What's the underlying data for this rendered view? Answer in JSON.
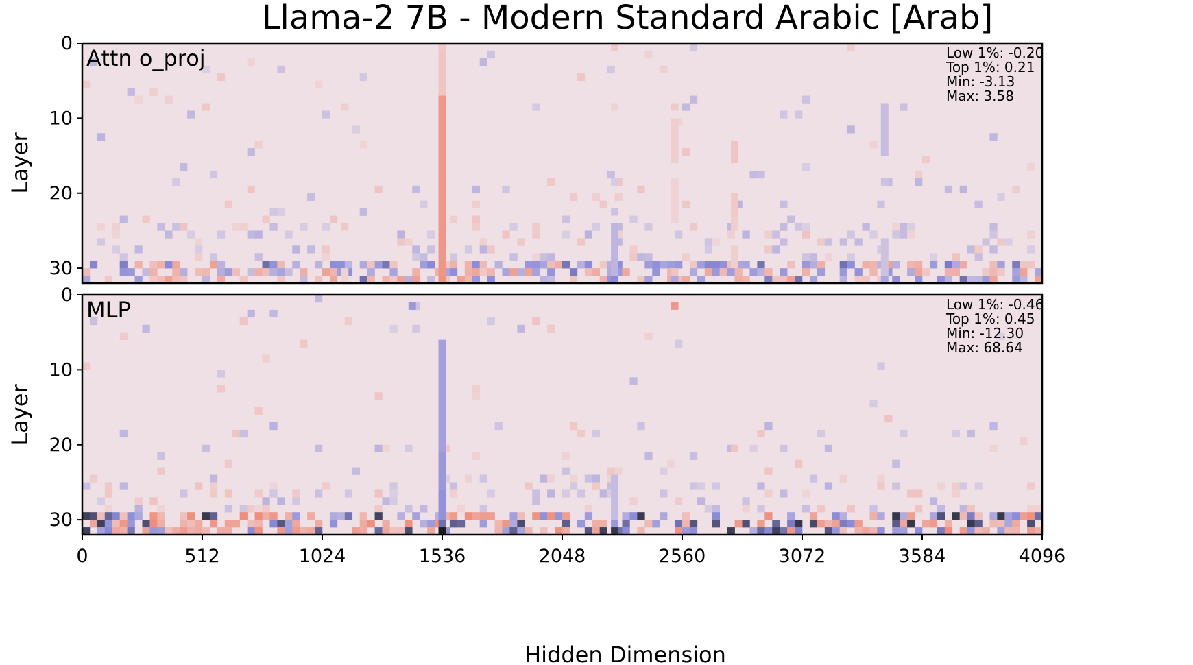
{
  "chart_data": {
    "type": "heatmap",
    "title": "Llama-2 7B - Modern Standard Arabic [Arab]",
    "xlabel": "Hidden Dimension",
    "ylabel": "Layer",
    "xlim": [
      0,
      4096
    ],
    "ylim": [
      0,
      32
    ],
    "xticks": [
      "0",
      "512",
      "1024",
      "1536",
      "2048",
      "2560",
      "3072",
      "3584",
      "4096"
    ],
    "yticks": [
      "0",
      "10",
      "20",
      "30"
    ],
    "colormap": {
      "negative": "#8a8ad8",
      "neutral": "#efe0e5",
      "positive": "#ee8470",
      "extreme": "#1c1c1c"
    },
    "panels": [
      {
        "name": "Attn o_proj",
        "stats": [
          "Low 1%: -0.20",
          "Top 1%: 0.21",
          "Min: -3.13",
          "Max: 3.58"
        ],
        "cells": [
          {
            "x": 1536,
            "layers": [
              [
                1,
                7,
                0.3
              ],
              [
                7,
                31,
                0.8
              ],
              [
                31,
                32,
                0.85
              ],
              [
                0,
                1,
                0.25
              ]
            ]
          },
          {
            "x": 2272,
            "layers": [
              [
                0,
                1,
                0.25
              ],
              [
                8,
                9,
                0.15
              ],
              [
                18,
                19,
                -0.15
              ],
              [
                22,
                23,
                -0.2
              ],
              [
                24,
                31,
                -0.3
              ],
              [
                31,
                32,
                -0.6
              ]
            ]
          },
          {
            "x": 2528,
            "layers": [
              [
                8,
                9,
                0.25
              ],
              [
                10,
                16,
                0.2
              ],
              [
                18,
                24,
                0.15
              ],
              [
                30,
                31,
                0.3
              ],
              [
                31,
                32,
                -0.4
              ]
            ]
          },
          {
            "x": 2784,
            "layers": [
              [
                13,
                16,
                0.3
              ],
              [
                20,
                23,
                0.25
              ],
              [
                23,
                25,
                0.2
              ],
              [
                27,
                30,
                0.2
              ]
            ]
          },
          {
            "x": 3424,
            "layers": [
              [
                8,
                15,
                -0.25
              ],
              [
                18,
                19,
                -0.2
              ],
              [
                26,
                31,
                -0.2
              ],
              [
                31,
                32,
                -0.4
              ]
            ]
          },
          {
            "x": 1120,
            "layers": [
              [
                8,
                9,
                0.2
              ],
              [
                24,
                25,
                0.25
              ],
              [
                30,
                32,
                0.15
              ]
            ]
          }
        ]
      },
      {
        "name": "MLP",
        "stats": [
          "Low 1%: -0.46",
          "Top 1%: 0.45",
          "Min: -12.30",
          "Max: 68.64"
        ],
        "cells": [
          {
            "x": 1536,
            "layers": [
              [
                6,
                21,
                -0.45
              ],
              [
                21,
                26,
                -0.5
              ],
              [
                26,
                30,
                -0.55
              ],
              [
                30,
                31,
                -0.7
              ],
              [
                31,
                32,
                -1.0
              ]
            ]
          },
          {
            "x": 1408,
            "layers": [
              [
                1,
                2,
                -0.5
              ]
            ]
          },
          {
            "x": 2528,
            "layers": [
              [
                1,
                2,
                0.8
              ]
            ]
          },
          {
            "x": 2784,
            "layers": [
              [
                20,
                21,
                0.3
              ]
            ]
          },
          {
            "x": 2272,
            "layers": [
              [
                24,
                30,
                -0.25
              ],
              [
                30,
                31,
                -0.5
              ],
              [
                31,
                32,
                -0.9
              ]
            ]
          }
        ]
      }
    ]
  }
}
